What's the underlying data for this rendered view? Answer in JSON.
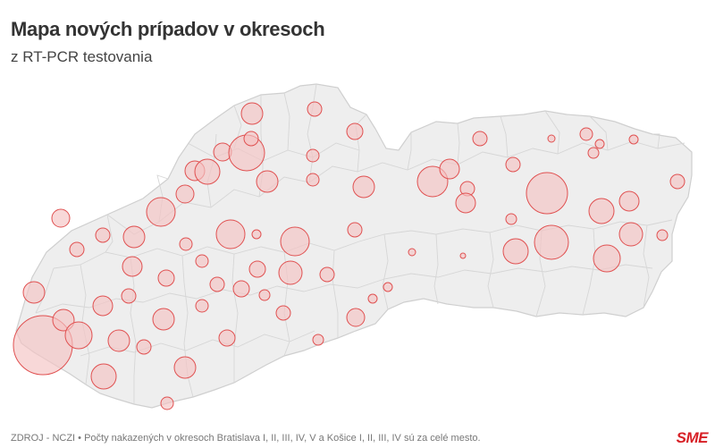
{
  "title": "Mapa nových prípadov v okresoch",
  "subtitle": "z RT-PCR testovania",
  "footer": {
    "source": "ZDROJ - NCZI",
    "bullet": "•",
    "note": "Počty nakazených v okresoch Bratislava I, II, III, IV, V a Košice I, II, III, IV sú za celé mesto."
  },
  "brand": {
    "logo_text": "SME",
    "color": "#d71f25"
  },
  "map": {
    "country_fill": "#eeeeee",
    "border_color": "#d6d6d6",
    "bubble_fill": "#f4c3c3",
    "bubble_stroke": "#e05151",
    "bubble_count": 78
  }
}
